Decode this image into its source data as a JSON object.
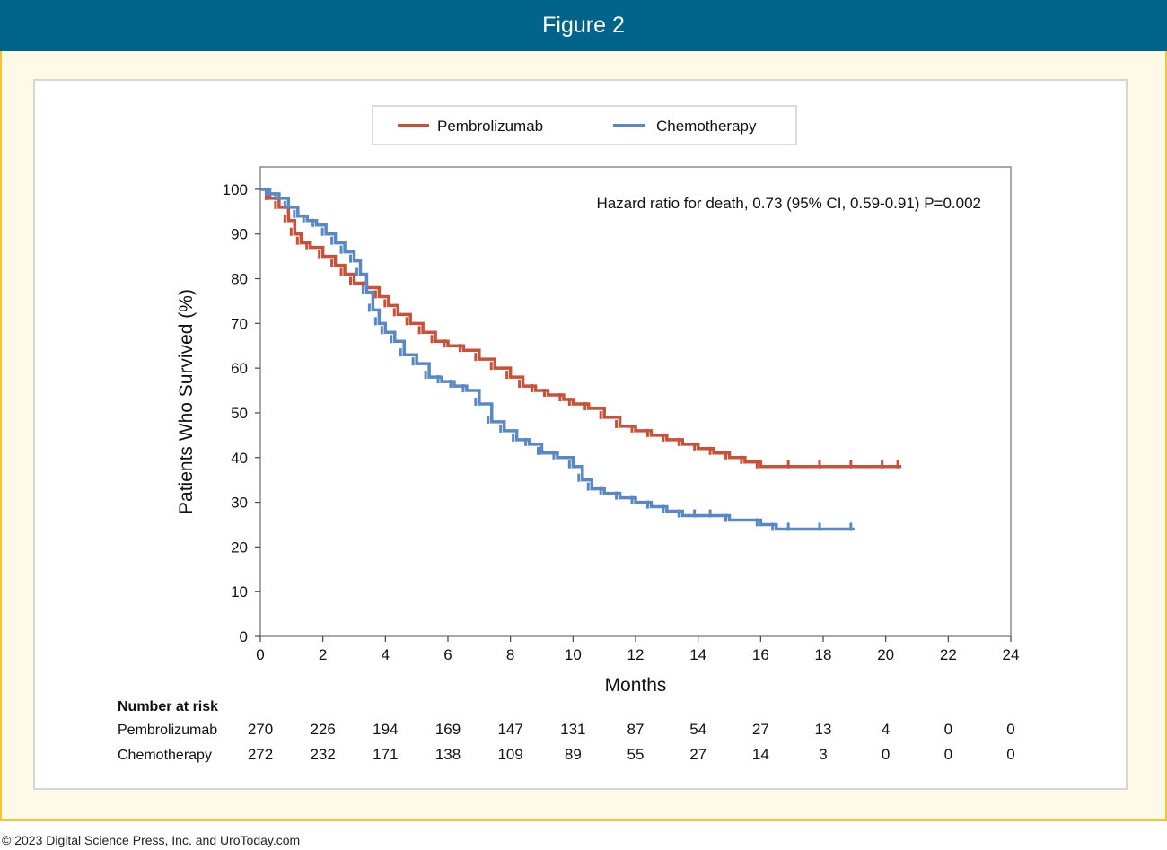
{
  "banner": {
    "title": "Figure 2"
  },
  "footer": {
    "copyright": "© 2023 Digital Science Press, Inc. and UroToday.com"
  },
  "colors": {
    "banner": "#00638a",
    "border": "#f5c23a",
    "pembrolizumab": "#c8513a",
    "chemotherapy": "#5a87c6"
  },
  "chart_data": {
    "type": "line",
    "title": "",
    "xlabel": "Months",
    "ylabel": "Patients Who Survived (%)",
    "xlim": [
      0,
      24
    ],
    "ylim": [
      0,
      105
    ],
    "xticks": [
      0,
      2,
      4,
      6,
      8,
      10,
      12,
      14,
      16,
      18,
      20,
      22,
      24
    ],
    "yticks": [
      0,
      10,
      20,
      30,
      40,
      50,
      60,
      70,
      80,
      90,
      100
    ],
    "legend_position": "top-center",
    "annotation": "Hazard ratio for death, 0.73 (95% CI, 0.59-0.91) P=0.002",
    "series": [
      {
        "name": "Pembrolizumab",
        "color": "#c8513a",
        "x": [
          0,
          0.3,
          0.6,
          0.9,
          1.1,
          1.3,
          1.6,
          2.0,
          2.4,
          2.7,
          3.0,
          3.4,
          3.8,
          4.1,
          4.4,
          4.8,
          5.2,
          5.6,
          6.0,
          6.5,
          7.0,
          7.5,
          8.0,
          8.4,
          8.8,
          9.2,
          9.7,
          10.0,
          10.5,
          11.0,
          11.5,
          12.0,
          12.5,
          13.0,
          13.5,
          14.0,
          14.5,
          15.0,
          15.5,
          16.0,
          17.0,
          18.0,
          19.0,
          20.0,
          20.5
        ],
        "y": [
          100,
          98,
          96,
          93,
          90,
          88,
          87,
          85,
          83,
          81,
          79,
          78,
          76,
          74,
          72,
          70,
          68,
          66,
          65,
          64,
          62,
          60,
          58,
          56,
          55,
          54,
          53,
          52,
          51,
          49,
          47,
          46,
          45,
          44,
          43,
          42,
          41,
          40,
          39,
          38,
          38,
          38,
          38,
          38,
          38
        ]
      },
      {
        "name": "Chemotherapy",
        "color": "#5a87c6",
        "x": [
          0,
          0.3,
          0.6,
          0.9,
          1.2,
          1.5,
          1.8,
          2.1,
          2.4,
          2.7,
          3.0,
          3.2,
          3.4,
          3.6,
          3.8,
          4.0,
          4.3,
          4.6,
          5.0,
          5.4,
          5.8,
          6.2,
          6.6,
          7.0,
          7.4,
          7.8,
          8.2,
          8.6,
          9.0,
          9.5,
          10.0,
          10.3,
          10.6,
          11.0,
          11.5,
          12.0,
          12.5,
          13.0,
          13.5,
          14.0,
          14.5,
          15.0,
          16.0,
          16.5,
          17.0,
          18.0,
          19.0
        ],
        "y": [
          100,
          99,
          98,
          96,
          94,
          93,
          92,
          90,
          88,
          86,
          84,
          81,
          77,
          73,
          70,
          68,
          66,
          63,
          61,
          58,
          57,
          56,
          55,
          52,
          48,
          46,
          44,
          43,
          41,
          40,
          38,
          35,
          33,
          32,
          31,
          30,
          29,
          28,
          27,
          27,
          27,
          26,
          25,
          24,
          24,
          24,
          24
        ]
      }
    ],
    "risk_table": {
      "title": "Number at risk",
      "times": [
        0,
        2,
        4,
        6,
        8,
        10,
        12,
        14,
        16,
        18,
        20,
        22,
        24
      ],
      "rows": [
        {
          "label": "Pembrolizumab",
          "values": [
            "270",
            "226",
            "194",
            "169",
            "147",
            "131",
            "87",
            "54",
            "27",
            "13",
            "4",
            "0",
            "0"
          ]
        },
        {
          "label": "Chemotherapy",
          "values": [
            "272",
            "232",
            "171",
            "138",
            "109",
            "89",
            "55",
            "27",
            "14",
            "3",
            "0",
            "0",
            "0"
          ]
        }
      ]
    }
  }
}
